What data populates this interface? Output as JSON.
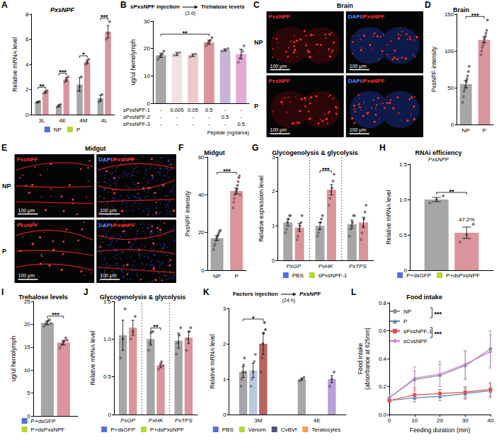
{
  "chart_data": [
    {
      "panel": "A",
      "type": "bar",
      "title": "PxsNPF",
      "ylabel": "Relative mRNA level",
      "categories": [
        "3L",
        "4E",
        "4M",
        "4L"
      ],
      "series": [
        {
          "name": "NP",
          "color": "#a6a6a6",
          "values": [
            1.0,
            0.7,
            2.4,
            1.3
          ],
          "errors": [
            0.05,
            0.08,
            0.55,
            0.25
          ],
          "points": [
            [
              0.95,
              1.0,
              1.05
            ],
            [
              0.6,
              0.7,
              0.8
            ],
            [
              1.9,
              2.2,
              3.0
            ],
            [
              1.0,
              1.2,
              1.6
            ]
          ]
        },
        {
          "name": "P",
          "color": "#d9959b",
          "values": [
            1.8,
            2.8,
            4.2,
            6.6
          ],
          "errors": [
            0.1,
            0.15,
            0.15,
            0.5
          ],
          "points": [
            [
              1.7,
              1.8,
              1.9
            ],
            [
              2.6,
              2.8,
              3.0
            ],
            [
              4.0,
              4.2,
              4.4
            ],
            [
              6.0,
              6.5,
              7.4
            ]
          ]
        }
      ],
      "ylim": [
        0,
        8
      ],
      "yticks": [
        0,
        2,
        4,
        6,
        8
      ],
      "grid": false,
      "legend": "bottom",
      "annotations": [
        {
          "text": "**",
          "category": "3L"
        },
        {
          "text": "***",
          "category": "4E"
        },
        {
          "text": "*",
          "category": "4M"
        },
        {
          "text": "***",
          "category": "4L"
        }
      ]
    },
    {
      "panel": "B",
      "type": "bar",
      "title": [
        "sPxsNPF injection",
        "Trehalose levels"
      ],
      "title_note": "(3 d)",
      "ylabel": "ug/ul hemolymph",
      "categories": [
        null,
        null,
        null,
        null,
        null,
        null
      ],
      "values": [
        17.5,
        18.0,
        17.6,
        22.3,
        19.5,
        18.0
      ],
      "errors": [
        0.8,
        0.6,
        0.5,
        0.8,
        0.4,
        1.8
      ],
      "colors": [
        "#a6a6a6",
        "#f3e0e0",
        "#ecc9cb",
        "#d9959b",
        "#c6b4d8",
        "#e3a8d8"
      ],
      "points": [
        [
          16,
          17,
          17.5,
          18,
          19
        ],
        [
          17.5,
          18,
          18.5
        ],
        [
          17,
          17.5,
          18
        ],
        [
          21,
          22,
          22.5,
          23,
          24
        ],
        [
          19,
          19.5,
          20
        ],
        [
          15,
          16.5,
          17.5,
          19,
          21
        ]
      ],
      "ylim": [
        0,
        30
      ],
      "yticks": [
        0,
        10,
        20,
        30
      ],
      "grid": false,
      "table": {
        "rows": [
          {
            "label": "sPxsNPF-1",
            "cells": [
              "-",
              "0.005",
              "0.05",
              "0.5",
              "-",
              "-"
            ]
          },
          {
            "label": "sPxsNPF-2",
            "cells": [
              "-",
              "-",
              "-",
              "-",
              "0.5",
              "-"
            ]
          },
          {
            "label": "sPxsNPF-3",
            "cells": [
              "-",
              "-",
              "-",
              "-",
              "-",
              "0.5"
            ]
          }
        ],
        "caption": "Peptide (ng/larva)"
      },
      "annotations": [
        {
          "text": "**",
          "positions": [
            0,
            3
          ]
        }
      ]
    },
    {
      "panel": "D",
      "type": "bar",
      "title": "Brain",
      "ylabel": "PxsNPF intensity",
      "categories": [
        "NP",
        "P"
      ],
      "values": [
        55,
        115
      ],
      "errors": [
        5,
        4
      ],
      "colors": [
        "#a6a6a6",
        "#d9959b"
      ],
      "points": [
        [
          30,
          38,
          45,
          48,
          52,
          58,
          62,
          66,
          72,
          79
        ],
        [
          95,
          100,
          105,
          108,
          112,
          116,
          120,
          124,
          128,
          142
        ]
      ],
      "ylim": [
        0,
        150
      ],
      "yticks": [
        0,
        50,
        100,
        150
      ],
      "grid": false,
      "annotations": [
        {
          "text": "***",
          "categories": [
            "NP",
            "P"
          ]
        }
      ]
    },
    {
      "panel": "F",
      "type": "bar",
      "title": "Midgut",
      "ylabel": "PxsNPF intensity",
      "categories": [
        "NP",
        "P"
      ],
      "values": [
        17,
        42
      ],
      "errors": [
        1.3,
        1.5
      ],
      "colors": [
        "#a6a6a6",
        "#d9959b"
      ],
      "points": [
        [
          11,
          13,
          14,
          16,
          17,
          18,
          19,
          20,
          21,
          21
        ],
        [
          33,
          36,
          38,
          40,
          41,
          42,
          43,
          45,
          47,
          49,
          50,
          40
        ]
      ],
      "ylim": [
        0,
        60
      ],
      "yticks": [
        0,
        20,
        40,
        60
      ],
      "grid": false,
      "annotations": [
        {
          "text": "***",
          "categories": [
            "NP",
            "P"
          ]
        }
      ]
    },
    {
      "panel": "G",
      "type": "bar",
      "title": "Glycogenolysis & glycolysis",
      "ylabel": "Relative expression level",
      "categories": [
        "PxGP",
        "PxHK",
        "PxTPS"
      ],
      "series": [
        {
          "name": "PBS",
          "color": "#a6a6a6",
          "values": [
            1.1,
            1.0,
            1.05
          ],
          "errors": [
            0.1,
            0.1,
            0.12
          ],
          "points": [
            [
              0.8,
              0.9,
              1.1,
              1.2,
              1.3,
              1.3
            ],
            [
              0.7,
              0.8,
              0.9,
              1.1,
              1.2,
              1.3
            ],
            [
              0.7,
              0.9,
              1.0,
              1.1,
              1.3,
              1.3
            ]
          ]
        },
        {
          "name": "sPxsNPF-1",
          "color": "#d9959b",
          "values": [
            0.95,
            2.05,
            1.1
          ],
          "errors": [
            0.12,
            0.15,
            0.15
          ],
          "points": [
            [
              0.6,
              0.7,
              0.9,
              1.0,
              1.1,
              1.3
            ],
            [
              1.6,
              1.8,
              2.0,
              2.1,
              2.3,
              2.5
            ],
            [
              0.6,
              0.8,
              1.0,
              1.2,
              1.4,
              1.6
            ]
          ]
        }
      ],
      "ylim": [
        0,
        3
      ],
      "yticks": [
        0,
        1,
        2,
        3
      ],
      "grid": false,
      "legend": "bottom",
      "annotations": [
        {
          "text": "***",
          "category": "PxHK"
        }
      ]
    },
    {
      "panel": "H",
      "type": "bar",
      "title": "RNAi efficiency",
      "subtitle": "PxsNPF",
      "ylabel": "Relative mRNA level",
      "categories": [
        null
      ],
      "series": [
        {
          "name": "P+dsGFP",
          "color": "#a6a6a6",
          "values": [
            1.0
          ],
          "errors": [
            0.03
          ],
          "points": [
            [
              0.95,
              1.0,
              1.05
            ]
          ]
        },
        {
          "name": "P+dsPxsNPF",
          "color": "#d9959b",
          "values": [
            0.53
          ],
          "errors": [
            0.08
          ],
          "points": [
            [
              0.4,
              0.5,
              0.65
            ]
          ]
        }
      ],
      "ylim": [
        0,
        1.5
      ],
      "yticks": [
        0,
        0.5,
        {
          "value": 1,
          "label": "1.0"
        },
        1.5
      ],
      "grid": false,
      "legend": "bottom",
      "annotations": [
        {
          "text": "47.2%",
          "category": null,
          "series": [
            "P+dsPxsNPF"
          ]
        },
        {
          "text": "**",
          "category": null
        }
      ]
    },
    {
      "panel": "I",
      "type": "bar",
      "title": "Trehalose levels",
      "ylabel": "ug/ul hemolymph",
      "categories": [
        null
      ],
      "series": [
        {
          "name": "P+dsGFP",
          "color": "#a6a6a6",
          "values": [
            20.3
          ],
          "errors": [
            0.4
          ],
          "points": [
            [
              19.5,
              20,
              20.3,
              20.8,
              21,
              20.2
            ]
          ]
        },
        {
          "name": "P+dsPxsNPF",
          "color": "#d9959b",
          "values": [
            16.0
          ],
          "errors": [
            0.5
          ],
          "points": [
            [
              14.8,
              15.5,
              16,
              16.3,
              17,
              16.5
            ]
          ]
        }
      ],
      "ylim": [
        0,
        25
      ],
      "yticks": [
        0,
        5,
        10,
        15,
        20,
        25
      ],
      "grid": false,
      "legend": "bottom",
      "annotations": [
        {
          "text": "***",
          "category": null
        }
      ]
    },
    {
      "panel": "J",
      "type": "bar",
      "title": "Glycogenolysis & glycolysis",
      "ylabel": "Relative mRNA level",
      "categories": [
        "PxGP",
        "PxHK",
        "PxTPS"
      ],
      "series": [
        {
          "name": "P+dsGFP",
          "color": "#a6a6a6",
          "values": [
            1.05,
            1.0,
            0.98
          ],
          "errors": [
            0.2,
            0.08,
            0.1
          ],
          "points": [
            [
              0.75,
              1.0,
              1.4
            ],
            [
              0.85,
              0.95,
              1.1,
              1.1
            ],
            [
              0.8,
              0.95,
              1.05,
              1.15
            ]
          ]
        },
        {
          "name": "P+dsPxsNPF",
          "color": "#d9959b",
          "values": [
            1.15,
            0.65,
            1.02
          ],
          "errors": [
            0.1,
            0.03,
            0.08
          ],
          "points": [
            [
              1.0,
              1.1,
              1.3
            ],
            [
              0.6,
              0.65,
              0.7,
              0.65
            ],
            [
              0.85,
              1.0,
              1.1,
              1.15
            ]
          ]
        }
      ],
      "ylim": [
        0,
        1.5
      ],
      "yticks": [
        0,
        0.5,
        {
          "value": 1,
          "label": "1.0"
        },
        1.5
      ],
      "grid": false,
      "legend": "bottom",
      "annotations": [
        {
          "text": "**",
          "category": "PxHK"
        }
      ]
    },
    {
      "panel": "K",
      "type": "bar",
      "title": [
        "Factors injection",
        "PxsNPF"
      ],
      "title_note": "(24 h)",
      "ylabel": "Relative mRNA level",
      "categories": [
        "3M",
        "4E"
      ],
      "series": [
        {
          "name": "PBS",
          "color": "#a6a6a6",
          "values": [
            1.2,
            1.0
          ],
          "errors": [
            0.15,
            0.03
          ],
          "points": [
            [
              0.8,
              1.0,
              1.2,
              1.4,
              1.6,
              1.2
            ],
            [
              0.95,
              1.0,
              1.05
            ]
          ]
        },
        {
          "name": "Venom",
          "color": "#b9c9e0",
          "values": [
            1.25,
            null
          ],
          "errors": [
            0.2,
            null
          ],
          "points": [
            [
              0.8,
              1.0,
              1.2,
              1.5,
              1.7
            ],
            []
          ]
        },
        {
          "name": "CvBVf",
          "color": "#b86560",
          "values": [
            2.0,
            null
          ],
          "errors": [
            0.3,
            null
          ],
          "points": [
            [
              1.2,
              1.6,
              2.0,
              2.3,
              2.6,
              2.4
            ],
            []
          ]
        },
        {
          "name": "Teratocytes",
          "color": "#b9a0d6",
          "values": [
            null,
            1.0
          ],
          "errors": [
            null,
            0.1
          ],
          "points": [
            [],
            [
              0.8,
              1.0,
              1.2
            ]
          ]
        }
      ],
      "ylim": [
        0,
        3
      ],
      "yticks": [
        0,
        1,
        2,
        3
      ],
      "grid": false,
      "legend": "bottom",
      "annotations": [
        {
          "text": "*",
          "category": "3M",
          "series": [
            "PBS",
            "CvBVf"
          ]
        }
      ]
    },
    {
      "panel": "L",
      "type": "line",
      "title": "Food intake",
      "xlabel": "Feeding duration (min)",
      "ylabel": "Food intake\n(absorbance at 625nm)",
      "x": [
        0,
        10,
        20,
        30,
        40
      ],
      "series": [
        {
          "name": "NP",
          "color": "#8c8c8c",
          "marker": "circle",
          "values": [
            0.12,
            0.25,
            0.28,
            0.35,
            0.47
          ],
          "errors": [
            0.02,
            0.06,
            0.08,
            0.1,
            0.13
          ]
        },
        {
          "name": "P",
          "color": "#5b84b1",
          "marker": "triangle",
          "values": [
            0.1,
            0.12,
            0.13,
            0.15,
            0.17
          ],
          "errors": [
            0.01,
            0.03,
            0.03,
            0.04,
            0.05
          ]
        },
        {
          "name": "sPxsNPF-1",
          "color": "#e0534f",
          "marker": "square",
          "values": [
            0.1,
            0.14,
            0.15,
            0.16,
            0.18
          ],
          "errors": [
            0.01,
            0.03,
            0.03,
            0.04,
            0.05
          ]
        },
        {
          "name": "sCvsNPF",
          "color": "#c77fd6",
          "marker": "diamond",
          "values": [
            0.12,
            0.26,
            0.29,
            0.36,
            0.45
          ],
          "errors": [
            0.03,
            0.08,
            0.09,
            0.1,
            0.12
          ]
        }
      ],
      "xlim": [
        0,
        40
      ],
      "xticks": [
        0,
        10,
        20,
        30,
        40
      ],
      "ylim": [
        0,
        0.8
      ],
      "yticks": [
        {
          "value": 0,
          "label": "0.0"
        },
        0.2,
        0.4,
        0.6,
        0.8
      ],
      "grid": false,
      "legend": "upper left",
      "annotations": [
        {
          "text": "***",
          "series": [
            "NP",
            "P"
          ]
        },
        {
          "text": "***",
          "series": [
            "sPxsNPF-1",
            "sCvsNPF"
          ]
        }
      ]
    }
  ],
  "images": [
    {
      "panel": "C",
      "title": "Brain",
      "rows": [
        "NP",
        "P"
      ],
      "columns": [
        "PxsNPF",
        "DAPI/PxsNPF"
      ],
      "scale_bar": "100 μm"
    },
    {
      "panel": "E",
      "title": "Midgut",
      "rows": [
        "NP",
        "P"
      ],
      "columns": [
        "PxsNPF",
        "DAPI/PxsNPF"
      ],
      "scale_bar": "100 μm"
    }
  ]
}
